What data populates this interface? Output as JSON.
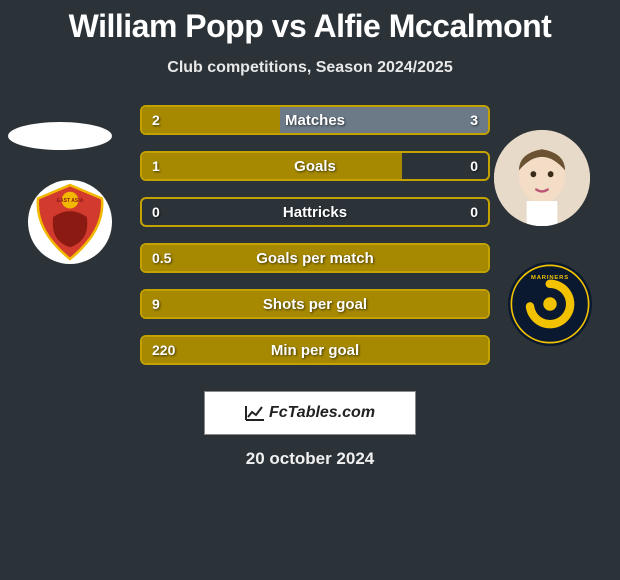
{
  "title_left": "William Popp",
  "title_vs": "vs",
  "title_right": "Alfie Mccalmont",
  "subtitle": "Club competitions, Season 2024/2025",
  "date": "20 october 2024",
  "brand": "FcTables.com",
  "colors": {
    "background": "#2c3338",
    "player1_accent": "#c4a300",
    "player1_fill": "#a68900",
    "player2_accent": "#8a9aa8",
    "player2_fill": "#6c7a88",
    "text": "#ffffff"
  },
  "stats": [
    {
      "label": "Matches",
      "p1": "2",
      "p2": "3",
      "p1_pct": 40,
      "p2_pct": 60
    },
    {
      "label": "Goals",
      "p1": "1",
      "p2": "0",
      "p1_pct": 75,
      "p2_pct": 0
    },
    {
      "label": "Hattricks",
      "p1": "0",
      "p2": "0",
      "p1_pct": 0,
      "p2_pct": 0
    },
    {
      "label": "Goals per match",
      "p1": "0.5",
      "p2": "",
      "p1_pct": 100,
      "p2_pct": 0
    },
    {
      "label": "Shots per goal",
      "p1": "9",
      "p2": "",
      "p1_pct": 100,
      "p2_pct": 0
    },
    {
      "label": "Min per goal",
      "p1": "220",
      "p2": "",
      "p1_pct": 100,
      "p2_pct": 0
    }
  ],
  "player1": {
    "name": "William Popp",
    "club_name": "East Asia",
    "club_badge_bg": "#ffffff",
    "club_badge_fg": "#d23a2e"
  },
  "player2": {
    "name": "Alfie Mccalmont",
    "club_name": "Central Coast Mariners",
    "club_badge_bg": "#0a1930",
    "club_badge_fg": "#f2c200"
  }
}
